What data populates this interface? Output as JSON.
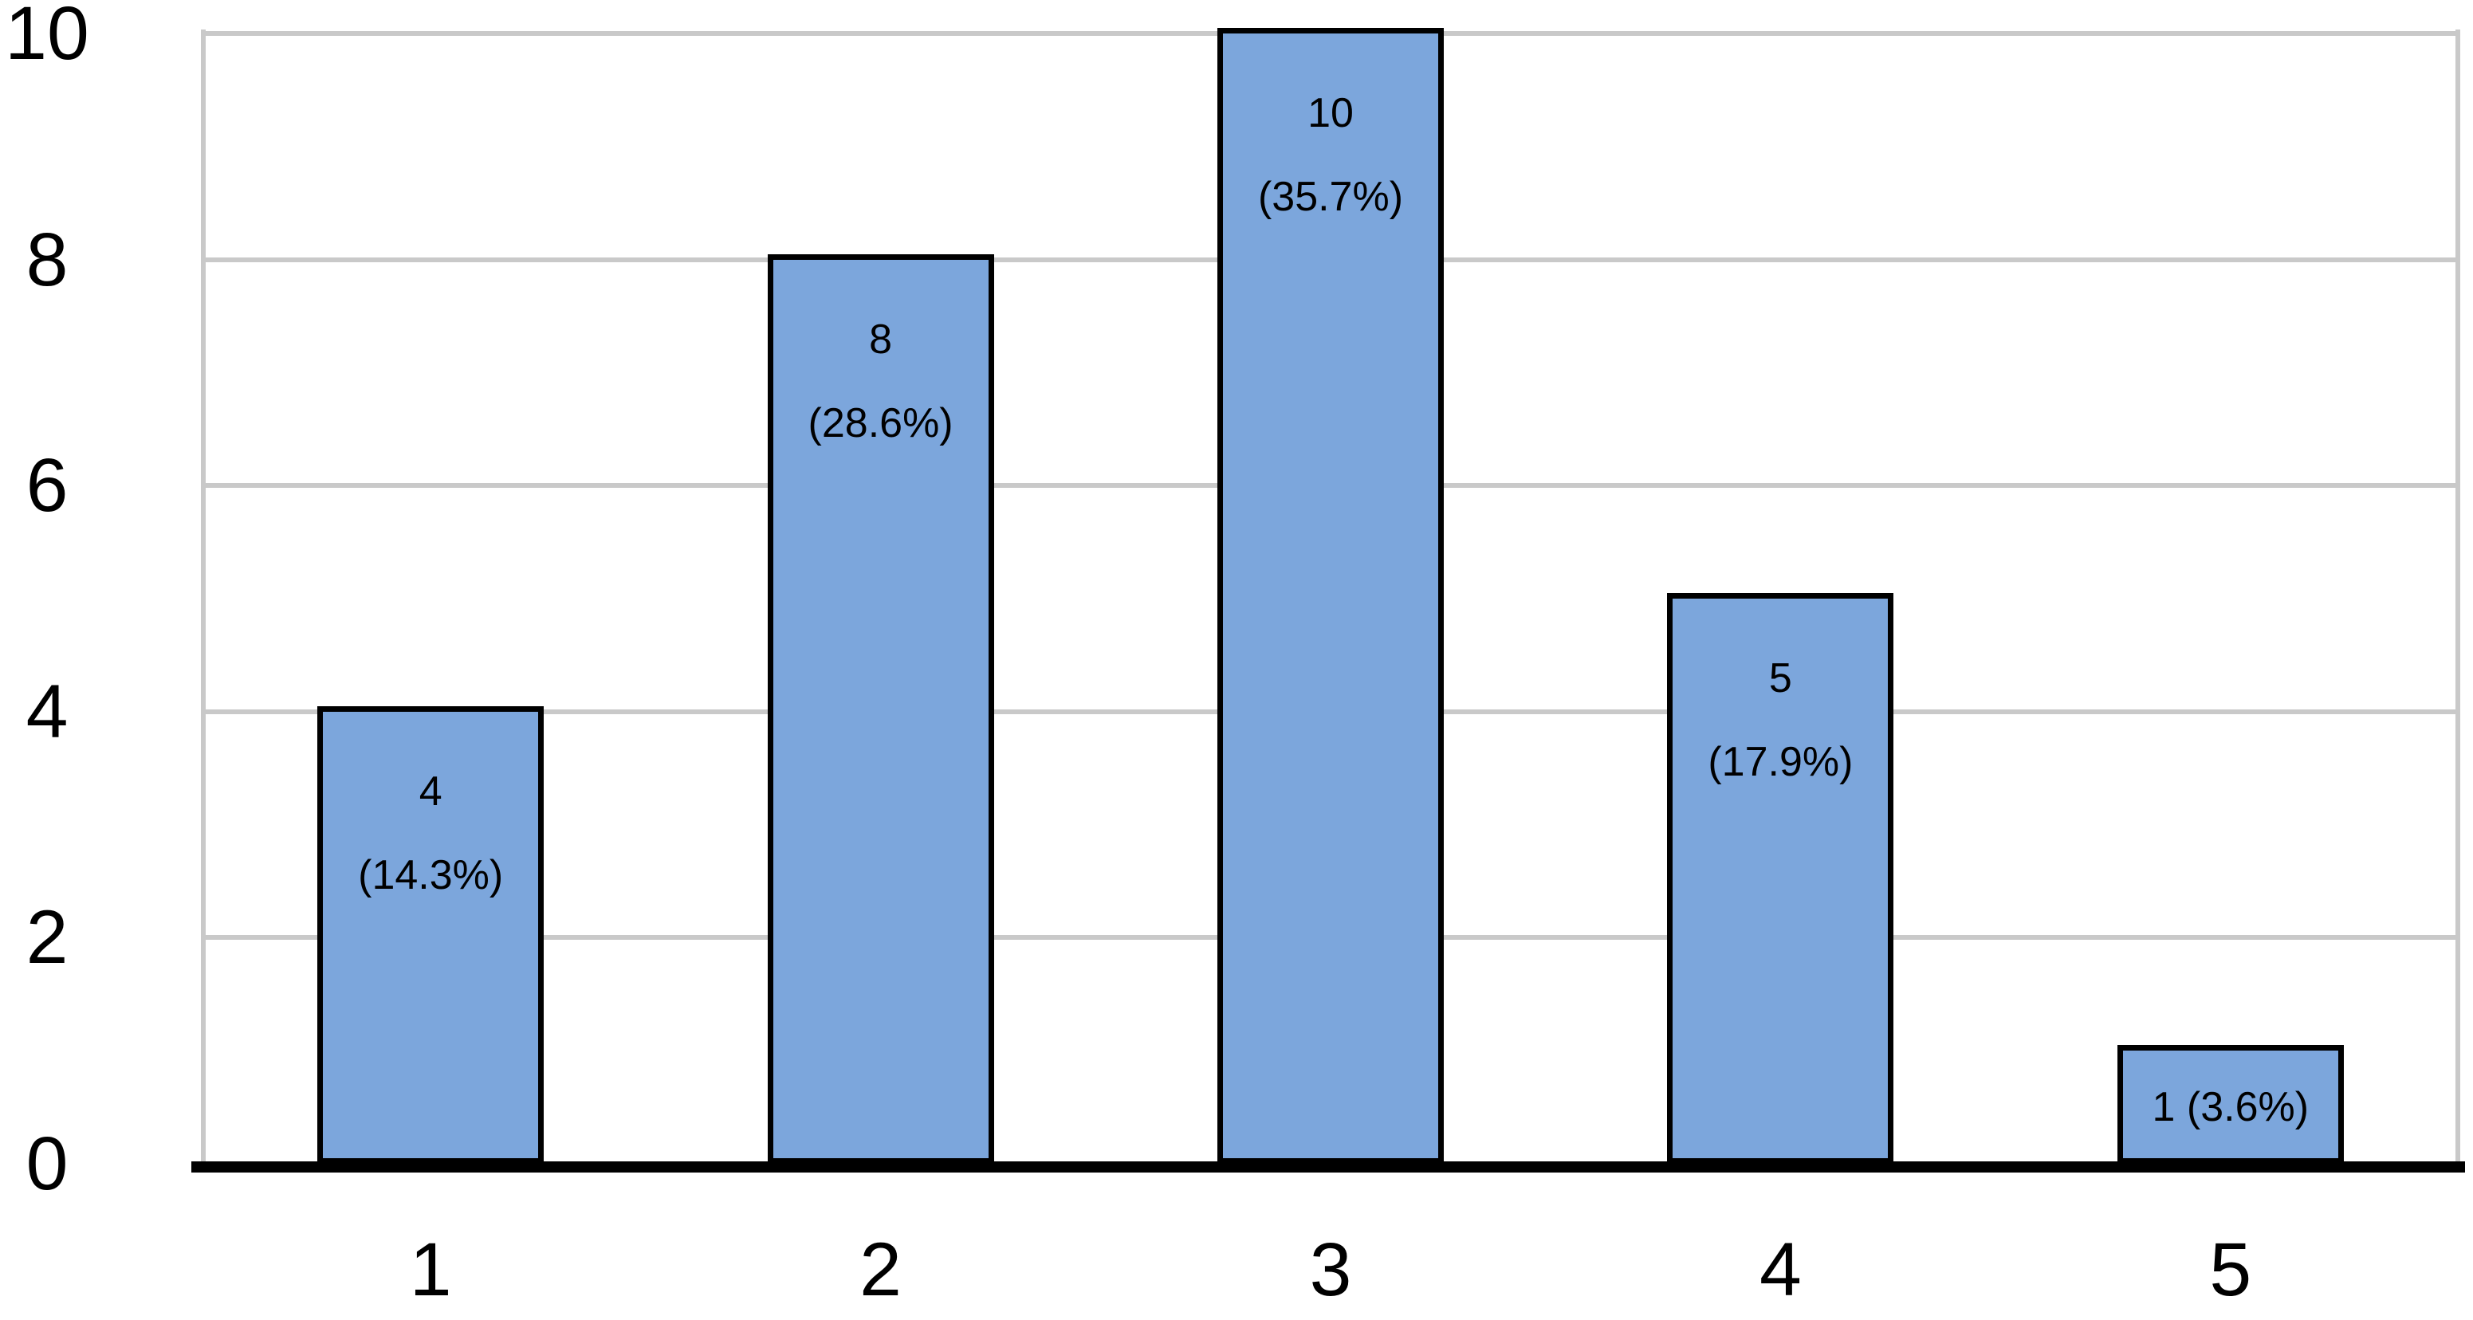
{
  "chart_data": {
    "type": "bar",
    "title": "",
    "xlabel": "",
    "ylabel": "",
    "categories": [
      "1",
      "2",
      "3",
      "4",
      "5"
    ],
    "values": [
      4,
      8,
      10,
      5,
      1
    ],
    "percentages": [
      14.3,
      28.6,
      35.7,
      17.9,
      3.6
    ],
    "bar_labels": [
      [
        "4",
        "(14.3%)"
      ],
      [
        "8",
        "(28.6%)"
      ],
      [
        "10",
        "(35.7%)"
      ],
      [
        "5",
        "(17.9%)"
      ],
      [
        "1 (3.6%)"
      ]
    ],
    "yticks": [
      "0",
      "2",
      "4",
      "6",
      "8",
      "10"
    ],
    "ylim": [
      0,
      10
    ],
    "ytick_step": 2,
    "grid": true,
    "legend": false,
    "colors": {
      "bar_fill": "#7CA6DC",
      "bar_border": "#000000",
      "gridline": "#C9C9C9",
      "axis_line": "#000000",
      "text": "#000000",
      "background": "#FFFFFF"
    }
  }
}
